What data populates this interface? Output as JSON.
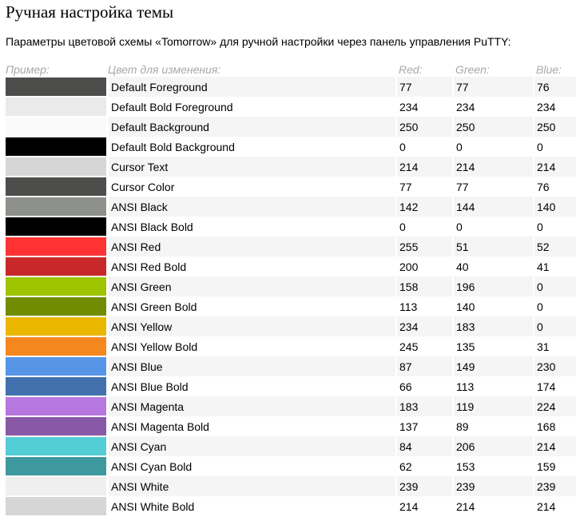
{
  "page": {
    "title": "Ручная настройка темы",
    "intro": "Параметры цветовой схемы «Tomorrow» для ручной настройки через панель управления PuTTY:"
  },
  "table": {
    "headers": {
      "sample": "Пример:",
      "name": "Цвет для изменения:",
      "red": "Red:",
      "green": "Green:",
      "blue": "Blue:"
    },
    "rows": [
      {
        "name": "Default Foreground",
        "r": "77",
        "g": "77",
        "b": "76",
        "color": "#4d4d4c"
      },
      {
        "name": "Default Bold Foreground",
        "r": "234",
        "g": "234",
        "b": "234",
        "color": "#eaeaea"
      },
      {
        "name": "Default Background",
        "r": "250",
        "g": "250",
        "b": "250",
        "color": "#fafafa"
      },
      {
        "name": "Default Bold Background",
        "r": "0",
        "g": "0",
        "b": "0",
        "color": "#000000"
      },
      {
        "name": "Cursor Text",
        "r": "214",
        "g": "214",
        "b": "214",
        "color": "#d6d6d6"
      },
      {
        "name": "Cursor Color",
        "r": "77",
        "g": "77",
        "b": "76",
        "color": "#4d4d4c"
      },
      {
        "name": "ANSI Black",
        "r": "142",
        "g": "144",
        "b": "140",
        "color": "#8e908c"
      },
      {
        "name": "ANSI Black Bold",
        "r": "0",
        "g": "0",
        "b": "0",
        "color": "#000000"
      },
      {
        "name": "ANSI Red",
        "r": "255",
        "g": "51",
        "b": "52",
        "color": "#ff3334"
      },
      {
        "name": "ANSI Red Bold",
        "r": "200",
        "g": "40",
        "b": "41",
        "color": "#c82829"
      },
      {
        "name": "ANSI Green",
        "r": "158",
        "g": "196",
        "b": "0",
        "color": "#9ec400"
      },
      {
        "name": "ANSI Green Bold",
        "r": "113",
        "g": "140",
        "b": "0",
        "color": "#718c00"
      },
      {
        "name": "ANSI Yellow",
        "r": "234",
        "g": "183",
        "b": "0",
        "color": "#eab700"
      },
      {
        "name": "ANSI Yellow Bold",
        "r": "245",
        "g": "135",
        "b": "31",
        "color": "#f5871f"
      },
      {
        "name": "ANSI Blue",
        "r": "87",
        "g": "149",
        "b": "230",
        "color": "#5795e6"
      },
      {
        "name": "ANSI Blue Bold",
        "r": "66",
        "g": "113",
        "b": "174",
        "color": "#4271ae"
      },
      {
        "name": "ANSI Magenta",
        "r": "183",
        "g": "119",
        "b": "224",
        "color": "#b777e0"
      },
      {
        "name": "ANSI Magenta Bold",
        "r": "137",
        "g": "89",
        "b": "168",
        "color": "#8959a8"
      },
      {
        "name": "ANSI Cyan",
        "r": "84",
        "g": "206",
        "b": "214",
        "color": "#54ced6"
      },
      {
        "name": "ANSI Cyan Bold",
        "r": "62",
        "g": "153",
        "b": "159",
        "color": "#3e999f"
      },
      {
        "name": "ANSI White",
        "r": "239",
        "g": "239",
        "b": "239",
        "color": "#efefef"
      },
      {
        "name": "ANSI White Bold",
        "r": "214",
        "g": "214",
        "b": "214",
        "color": "#d6d6d6"
      }
    ]
  }
}
